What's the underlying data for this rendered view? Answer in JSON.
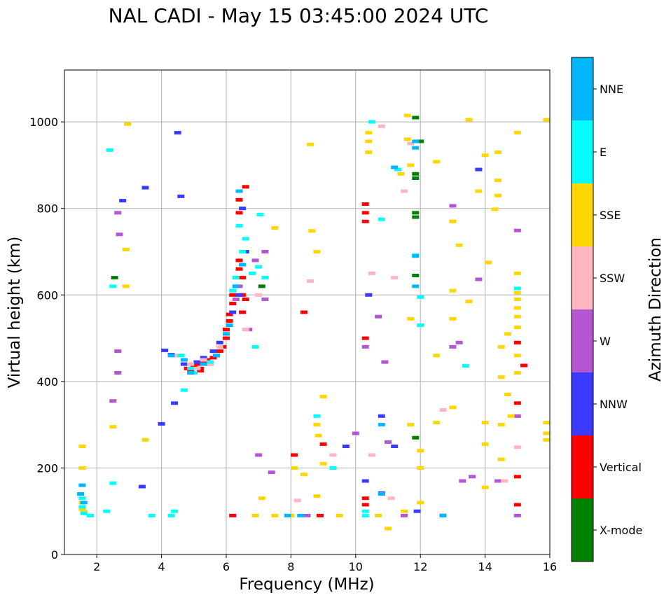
{
  "chart_data": {
    "type": "scatter",
    "title": "NAL CADI - May 15 03:45:00 2024 UTC",
    "xlabel": "Frequency (MHz)",
    "ylabel": "Virtual height (km)",
    "xlim": [
      1,
      16
    ],
    "ylim": [
      0,
      1120
    ],
    "xticks": [
      2,
      4,
      6,
      8,
      10,
      12,
      14,
      16
    ],
    "yticks": [
      0,
      200,
      400,
      600,
      800,
      1000
    ],
    "grid": true,
    "colorbar": {
      "label": "Azimuth Direction",
      "categories": [
        {
          "name": "X-mode",
          "color": "#008000"
        },
        {
          "name": "Vertical",
          "color": "#ff0000"
        },
        {
          "name": "NNW",
          "color": "#3a3aff"
        },
        {
          "name": "W",
          "color": "#b455d4"
        },
        {
          "name": "SSW",
          "color": "#ffb6c1"
        },
        {
          "name": "SSE",
          "color": "#ffd700"
        },
        {
          "name": "E",
          "color": "#00ffff"
        },
        {
          "name": "NNE",
          "color": "#00b7ff"
        }
      ]
    },
    "series": [
      {
        "name": "X-mode",
        "points": [
          [
            11.85,
            1010
          ],
          [
            11.85,
            880
          ],
          [
            11.85,
            870
          ],
          [
            11.85,
            790
          ],
          [
            11.85,
            780
          ],
          [
            11.85,
            645
          ],
          [
            2.55,
            640
          ],
          [
            11.85,
            270
          ],
          [
            7.1,
            620
          ],
          [
            12.0,
            955
          ]
        ]
      },
      {
        "name": "Vertical",
        "points": [
          [
            5.0,
            435
          ],
          [
            5.1,
            440
          ],
          [
            5.2,
            430
          ],
          [
            5.3,
            445
          ],
          [
            5.4,
            450
          ],
          [
            5.5,
            440
          ],
          [
            5.6,
            455
          ],
          [
            5.7,
            460
          ],
          [
            5.8,
            470
          ],
          [
            5.9,
            480
          ],
          [
            6.0,
            500
          ],
          [
            6.0,
            520
          ],
          [
            6.1,
            540
          ],
          [
            6.1,
            555
          ],
          [
            6.2,
            580
          ],
          [
            6.2,
            600
          ],
          [
            6.3,
            620
          ],
          [
            6.3,
            640
          ],
          [
            6.4,
            660
          ],
          [
            6.4,
            680
          ],
          [
            6.5,
            640
          ],
          [
            6.5,
            600
          ],
          [
            6.4,
            790
          ],
          [
            6.4,
            820
          ],
          [
            6.6,
            850
          ],
          [
            6.6,
            590
          ],
          [
            6.5,
            560
          ],
          [
            4.9,
            425
          ],
          [
            4.8,
            430
          ],
          [
            5.0,
            420
          ],
          [
            5.2,
            425
          ],
          [
            8.4,
            560
          ],
          [
            10.3,
            810
          ],
          [
            10.3,
            790
          ],
          [
            10.3,
            770
          ],
          [
            10.3,
            500
          ],
          [
            10.3,
            130
          ],
          [
            10.3,
            115
          ],
          [
            15.2,
            437
          ],
          [
            15.0,
            490
          ],
          [
            15.0,
            350
          ],
          [
            15.0,
            180
          ],
          [
            15.0,
            115
          ],
          [
            8.1,
            230
          ],
          [
            9.0,
            255
          ],
          [
            8.9,
            90
          ],
          [
            12.7,
            90
          ],
          [
            6.2,
            90
          ],
          [
            6.0,
            520
          ]
        ]
      },
      {
        "name": "NNW",
        "points": [
          [
            4.5,
            975
          ],
          [
            4.6,
            828
          ],
          [
            3.5,
            848
          ],
          [
            2.8,
            818
          ],
          [
            4.1,
            472
          ],
          [
            4.3,
            462
          ],
          [
            4.4,
            350
          ],
          [
            4.7,
            440
          ],
          [
            5.1,
            445
          ],
          [
            5.3,
            455
          ],
          [
            5.6,
            470
          ],
          [
            5.8,
            490
          ],
          [
            6.0,
            510
          ],
          [
            6.2,
            560
          ],
          [
            6.4,
            600
          ],
          [
            6.5,
            800
          ],
          [
            6.6,
            700
          ],
          [
            10.8,
            142
          ],
          [
            10.8,
            320
          ],
          [
            11.2,
            250
          ],
          [
            13.8,
            890
          ],
          [
            9.7,
            250
          ],
          [
            3.4,
            157
          ],
          [
            4.0,
            302
          ],
          [
            11.9,
            100
          ],
          [
            12.7,
            90
          ],
          [
            10.3,
            170
          ],
          [
            10.4,
            600
          ]
        ]
      },
      {
        "name": "W",
        "points": [
          [
            2.65,
            790
          ],
          [
            2.7,
            740
          ],
          [
            2.65,
            470
          ],
          [
            2.65,
            420
          ],
          [
            2.5,
            355
          ],
          [
            6.3,
            590
          ],
          [
            6.4,
            620
          ],
          [
            6.7,
            520
          ],
          [
            6.9,
            680
          ],
          [
            7.2,
            590
          ],
          [
            7.0,
            230
          ],
          [
            7.2,
            700
          ],
          [
            10.3,
            480
          ],
          [
            10.9,
            445
          ],
          [
            10.7,
            550
          ],
          [
            13.0,
            806
          ],
          [
            13.8,
            636
          ],
          [
            15.0,
            749
          ],
          [
            15.0,
            320
          ],
          [
            13.6,
            180
          ],
          [
            13.2,
            490
          ],
          [
            14.4,
            170
          ],
          [
            15.0,
            90
          ],
          [
            10.0,
            280
          ],
          [
            11.0,
            260
          ],
          [
            8.5,
            90
          ],
          [
            7.4,
            190
          ],
          [
            11.5,
            90
          ],
          [
            13.0,
            480
          ],
          [
            13.3,
            170
          ]
        ]
      },
      {
        "name": "SSW",
        "points": [
          [
            4.5,
            460
          ],
          [
            4.9,
            440
          ],
          [
            5.1,
            430
          ],
          [
            5.3,
            450
          ],
          [
            5.5,
            440
          ],
          [
            5.8,
            480
          ],
          [
            6.6,
            520
          ],
          [
            7.0,
            600
          ],
          [
            8.6,
            632
          ],
          [
            10.5,
            650
          ],
          [
            11.2,
            640
          ],
          [
            11.5,
            840
          ],
          [
            10.8,
            990
          ],
          [
            12.7,
            334
          ],
          [
            15.0,
            248
          ],
          [
            11.7,
            950
          ],
          [
            14.6,
            170
          ],
          [
            10.5,
            230
          ],
          [
            9.3,
            230
          ],
          [
            8.2,
            125
          ],
          [
            11.1,
            130
          ]
        ]
      },
      {
        "name": "SSE",
        "points": [
          [
            1.55,
            120
          ],
          [
            1.55,
            105
          ],
          [
            1.6,
            100
          ],
          [
            1.55,
            250
          ],
          [
            1.55,
            200
          ],
          [
            2.95,
            995
          ],
          [
            2.9,
            620
          ],
          [
            2.9,
            705
          ],
          [
            3.5,
            265
          ],
          [
            2.5,
            295
          ],
          [
            7.5,
            755
          ],
          [
            8.6,
            948
          ],
          [
            8.65,
            748
          ],
          [
            8.8,
            700
          ],
          [
            8.8,
            300
          ],
          [
            8.85,
            275
          ],
          [
            9.0,
            365
          ],
          [
            9.0,
            210
          ],
          [
            10.4,
            975
          ],
          [
            10.4,
            955
          ],
          [
            10.4,
            930
          ],
          [
            11.4,
            880
          ],
          [
            11.6,
            1015
          ],
          [
            11.6,
            960
          ],
          [
            11.7,
            900
          ],
          [
            12.5,
            908
          ],
          [
            13.0,
            770
          ],
          [
            13.2,
            715
          ],
          [
            13.0,
            610
          ],
          [
            13.0,
            545
          ],
          [
            13.5,
            1005
          ],
          [
            13.5,
            585
          ],
          [
            13.8,
            840
          ],
          [
            14.0,
            923
          ],
          [
            14.1,
            675
          ],
          [
            14.4,
            930
          ],
          [
            14.4,
            865
          ],
          [
            14.4,
            830
          ],
          [
            14.3,
            798
          ],
          [
            14.5,
            480
          ],
          [
            14.5,
            410
          ],
          [
            14.7,
            510
          ],
          [
            14.7,
            370
          ],
          [
            14.8,
            320
          ],
          [
            15.0,
            975
          ],
          [
            15.0,
            650
          ],
          [
            15.0,
            605
          ],
          [
            15.0,
            590
          ],
          [
            15.0,
            570
          ],
          [
            15.0,
            550
          ],
          [
            15.0,
            525
          ],
          [
            15.0,
            460
          ],
          [
            15.0,
            420
          ],
          [
            15.9,
            1005
          ],
          [
            15.9,
            305
          ],
          [
            15.9,
            280
          ],
          [
            15.9,
            265
          ],
          [
            14.0,
            305
          ],
          [
            14.5,
            300
          ],
          [
            13.0,
            340
          ],
          [
            12.5,
            305
          ],
          [
            12.5,
            460
          ],
          [
            14.0,
            255
          ],
          [
            14.5,
            220
          ],
          [
            14.0,
            155
          ],
          [
            12.0,
            240
          ],
          [
            12.0,
            200
          ],
          [
            12.0,
            120
          ],
          [
            11.5,
            100
          ],
          [
            10.7,
            90
          ],
          [
            9.5,
            90
          ],
          [
            8.0,
            90
          ],
          [
            7.5,
            90
          ],
          [
            6.9,
            90
          ],
          [
            7.1,
            130
          ],
          [
            8.1,
            200
          ],
          [
            8.8,
            135
          ],
          [
            8.4,
            185
          ],
          [
            11.7,
            300
          ],
          [
            11.7,
            545
          ],
          [
            11.0,
            60
          ]
        ]
      },
      {
        "name": "E",
        "points": [
          [
            1.55,
            130
          ],
          [
            1.55,
            110
          ],
          [
            1.6,
            95
          ],
          [
            1.8,
            90
          ],
          [
            2.3,
            100
          ],
          [
            2.5,
            165
          ],
          [
            2.4,
            935
          ],
          [
            2.5,
            620
          ],
          [
            4.4,
            100
          ],
          [
            4.3,
            90
          ],
          [
            3.7,
            90
          ],
          [
            4.7,
            380
          ],
          [
            4.6,
            460
          ],
          [
            4.9,
            430
          ],
          [
            5.0,
            420
          ],
          [
            5.5,
            445
          ],
          [
            6.2,
            610
          ],
          [
            6.3,
            640
          ],
          [
            6.8,
            650
          ],
          [
            7.0,
            665
          ],
          [
            7.2,
            640
          ],
          [
            6.5,
            700
          ],
          [
            6.4,
            760
          ],
          [
            6.6,
            730
          ],
          [
            7.05,
            786
          ],
          [
            6.9,
            480
          ],
          [
            10.3,
            90
          ],
          [
            10.3,
            100
          ],
          [
            10.8,
            775
          ],
          [
            11.3,
            890
          ],
          [
            11.85,
            692
          ],
          [
            12.0,
            595
          ],
          [
            12.0,
            530
          ],
          [
            13.4,
            436
          ],
          [
            15.0,
            615
          ],
          [
            10.5,
            1000
          ],
          [
            9.3,
            200
          ],
          [
            8.8,
            320
          ]
        ]
      },
      {
        "name": "NNE",
        "points": [
          [
            1.55,
            160
          ],
          [
            1.5,
            140
          ],
          [
            1.6,
            120
          ],
          [
            4.3,
            460
          ],
          [
            4.7,
            450
          ],
          [
            4.9,
            420
          ],
          [
            5.3,
            440
          ],
          [
            5.7,
            460
          ],
          [
            6.0,
            510
          ],
          [
            6.1,
            530
          ],
          [
            6.3,
            620
          ],
          [
            6.5,
            670
          ],
          [
            6.4,
            840
          ],
          [
            11.85,
            955
          ],
          [
            11.85,
            940
          ],
          [
            11.2,
            895
          ],
          [
            10.8,
            300
          ],
          [
            10.8,
            140
          ],
          [
            11.85,
            690
          ],
          [
            11.85,
            620
          ],
          [
            12.7,
            90
          ],
          [
            8.3,
            90
          ],
          [
            7.9,
            90
          ]
        ]
      }
    ]
  }
}
